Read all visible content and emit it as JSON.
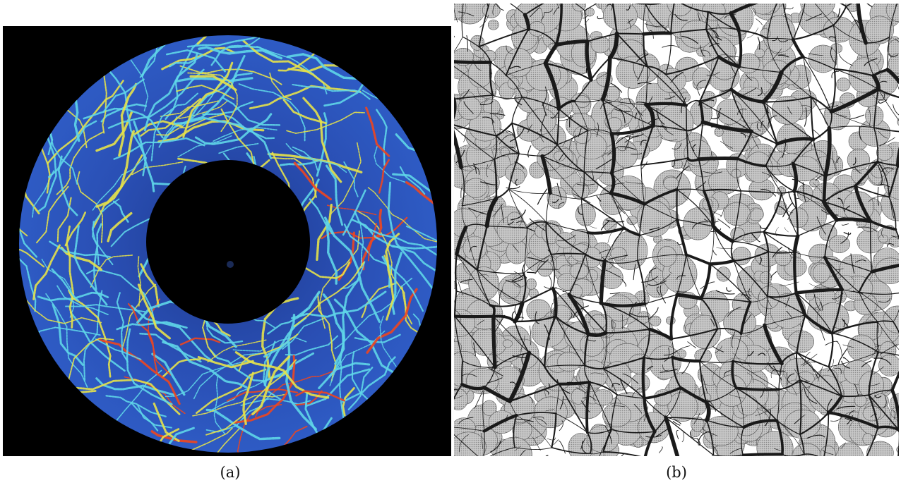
{
  "figure": {
    "panels": [
      {
        "label": "(a)",
        "image": "photoelastic-disk-force-chains-icon"
      },
      {
        "label": "(b)",
        "image": "simulated-granular-contact-network-icon"
      }
    ],
    "colors": {
      "background_a": "#000000",
      "disk_base": "#2a4fb4",
      "chain_low": "#5fd6e8",
      "chain_mid": "#e6e24a",
      "chain_high": "#f0461e",
      "grain_fill": "#bdbdbd",
      "force_line": "#1a1a1a"
    }
  }
}
